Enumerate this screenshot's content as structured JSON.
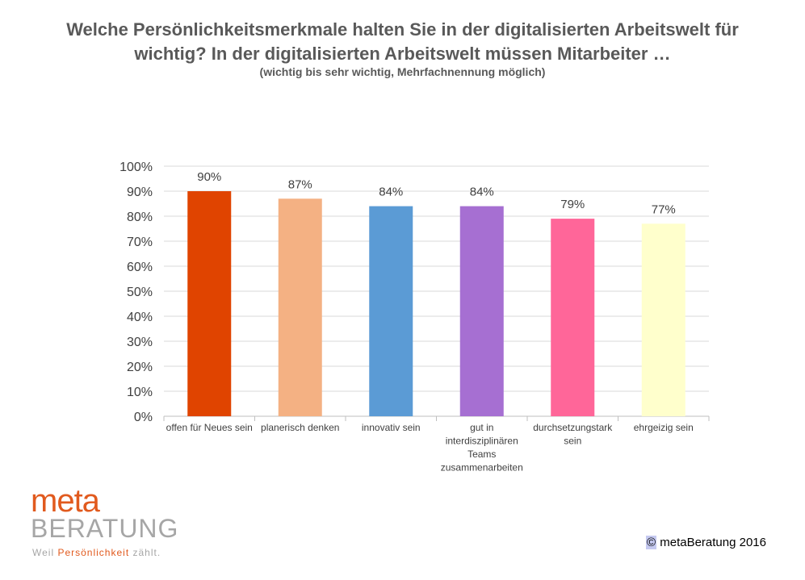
{
  "title": {
    "line1": "Welche Persönlichkeitsmerkmale halten Sie in der digitalisierten Arbeitswelt für",
    "line2": "wichtig? In der digitalisierten Arbeitswelt müssen Mitarbeiter …",
    "subtitle": "(wichtig bis sehr wichtig, Mehrfachnennung möglich)"
  },
  "chart_data": {
    "type": "bar",
    "categories": [
      "offen für Neues sein",
      "planerisch denken",
      "innovativ sein",
      "gut in interdisziplinären Teams zusammenarbeiten",
      "durchsetzungstark sein",
      "ehrgeizig sein"
    ],
    "category_lines": [
      [
        "offen für Neues sein"
      ],
      [
        "planerisch denken"
      ],
      [
        "innovativ sein"
      ],
      [
        "gut in",
        "interdisziplinären",
        "Teams",
        "zusammenarbeiten"
      ],
      [
        "durchsetzungstark",
        "sein"
      ],
      [
        "ehrgeizig sein"
      ]
    ],
    "values": [
      90,
      87,
      84,
      84,
      79,
      77
    ],
    "value_labels": [
      "90%",
      "87%",
      "84%",
      "84%",
      "79%",
      "77%"
    ],
    "colors": [
      "#e04400",
      "#f4b183",
      "#5b9bd5",
      "#a66fd2",
      "#ff6699",
      "#ffffcc"
    ],
    "ylim": [
      0,
      100
    ],
    "yticks": [
      0,
      10,
      20,
      30,
      40,
      50,
      60,
      70,
      80,
      90,
      100
    ],
    "ytick_labels": [
      "0%",
      "10%",
      "20%",
      "30%",
      "40%",
      "50%",
      "60%",
      "70%",
      "80%",
      "90%",
      "100%"
    ],
    "grid": true,
    "legend": "none"
  },
  "logo": {
    "meta": "meta",
    "beratung": "BERATUNG",
    "tag_pre": "Weil ",
    "tag_accent": "Persönlichkeit",
    "tag_post": " zählt."
  },
  "copyright": {
    "symbol": "©",
    "text": " metaBeratung 2016"
  }
}
